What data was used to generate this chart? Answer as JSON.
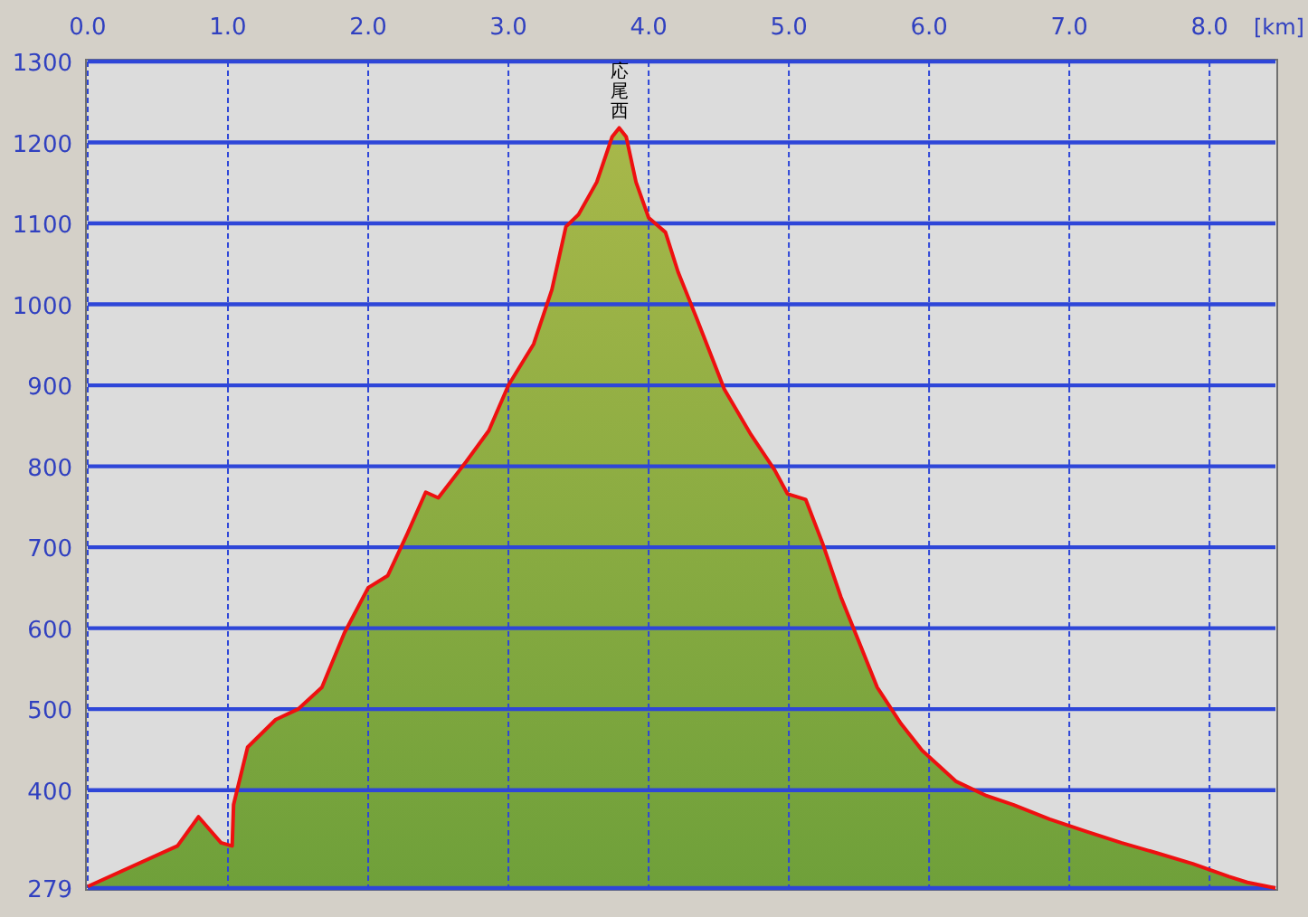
{
  "chart_data": {
    "type": "area",
    "xlabel": "[km]",
    "x": [
      0,
      0.64,
      0.79,
      0.95,
      1.03,
      1.04,
      1.14,
      1.34,
      1.5,
      1.67,
      1.83,
      2.0,
      2.14,
      2.28,
      2.41,
      2.5,
      2.7,
      2.86,
      3.0,
      3.18,
      3.31,
      3.41,
      3.5,
      3.63,
      3.74,
      3.79,
      3.84,
      3.91,
      4.0,
      4.12,
      4.21,
      4.34,
      4.54,
      4.73,
      4.9,
      4.99,
      5.12,
      5.24,
      5.37,
      5.5,
      5.63,
      5.8,
      5.95,
      6.19,
      6.41,
      6.6,
      6.86,
      7.12,
      7.37,
      7.63,
      7.88,
      8.14,
      8.27,
      8.47
    ],
    "series": [
      {
        "color": "#6fa03a",
        "values": [
          281,
          331,
          367,
          335,
          331,
          382,
          453,
          487,
          500,
          527,
          594,
          650,
          665,
          717,
          768,
          761,
          806,
          844,
          900,
          951,
          1018,
          1096,
          1111,
          1151,
          1207,
          1218,
          1207,
          1151,
          1107,
          1089,
          1040,
          984,
          895,
          839,
          795,
          766,
          759,
          705,
          639,
          583,
          527,
          482,
          449,
          411,
          393,
          382,
          364,
          349,
          335,
          322,
          309,
          293,
          286,
          279
        ]
      }
    ],
    "xlim": [
      0,
      8.47
    ],
    "ylim": [
      279,
      1300
    ],
    "xticks": [
      {
        "value": 0,
        "label": "0.0"
      },
      {
        "value": 1,
        "label": "1.0"
      },
      {
        "value": 2,
        "label": "2.0"
      },
      {
        "value": 3,
        "label": "3.0"
      },
      {
        "value": 4,
        "label": "4.0"
      },
      {
        "value": 5,
        "label": "5.0"
      },
      {
        "value": 6,
        "label": "6.0"
      },
      {
        "value": 7,
        "label": "7.0"
      },
      {
        "value": 8,
        "label": "8.0"
      }
    ],
    "yticks": [
      279,
      400,
      500,
      600,
      700,
      800,
      900,
      1000,
      1100,
      1200,
      1300
    ],
    "grid": true,
    "annotations": [
      {
        "text": "応尾西",
        "x": 3.79,
        "y": 1218
      }
    ]
  }
}
